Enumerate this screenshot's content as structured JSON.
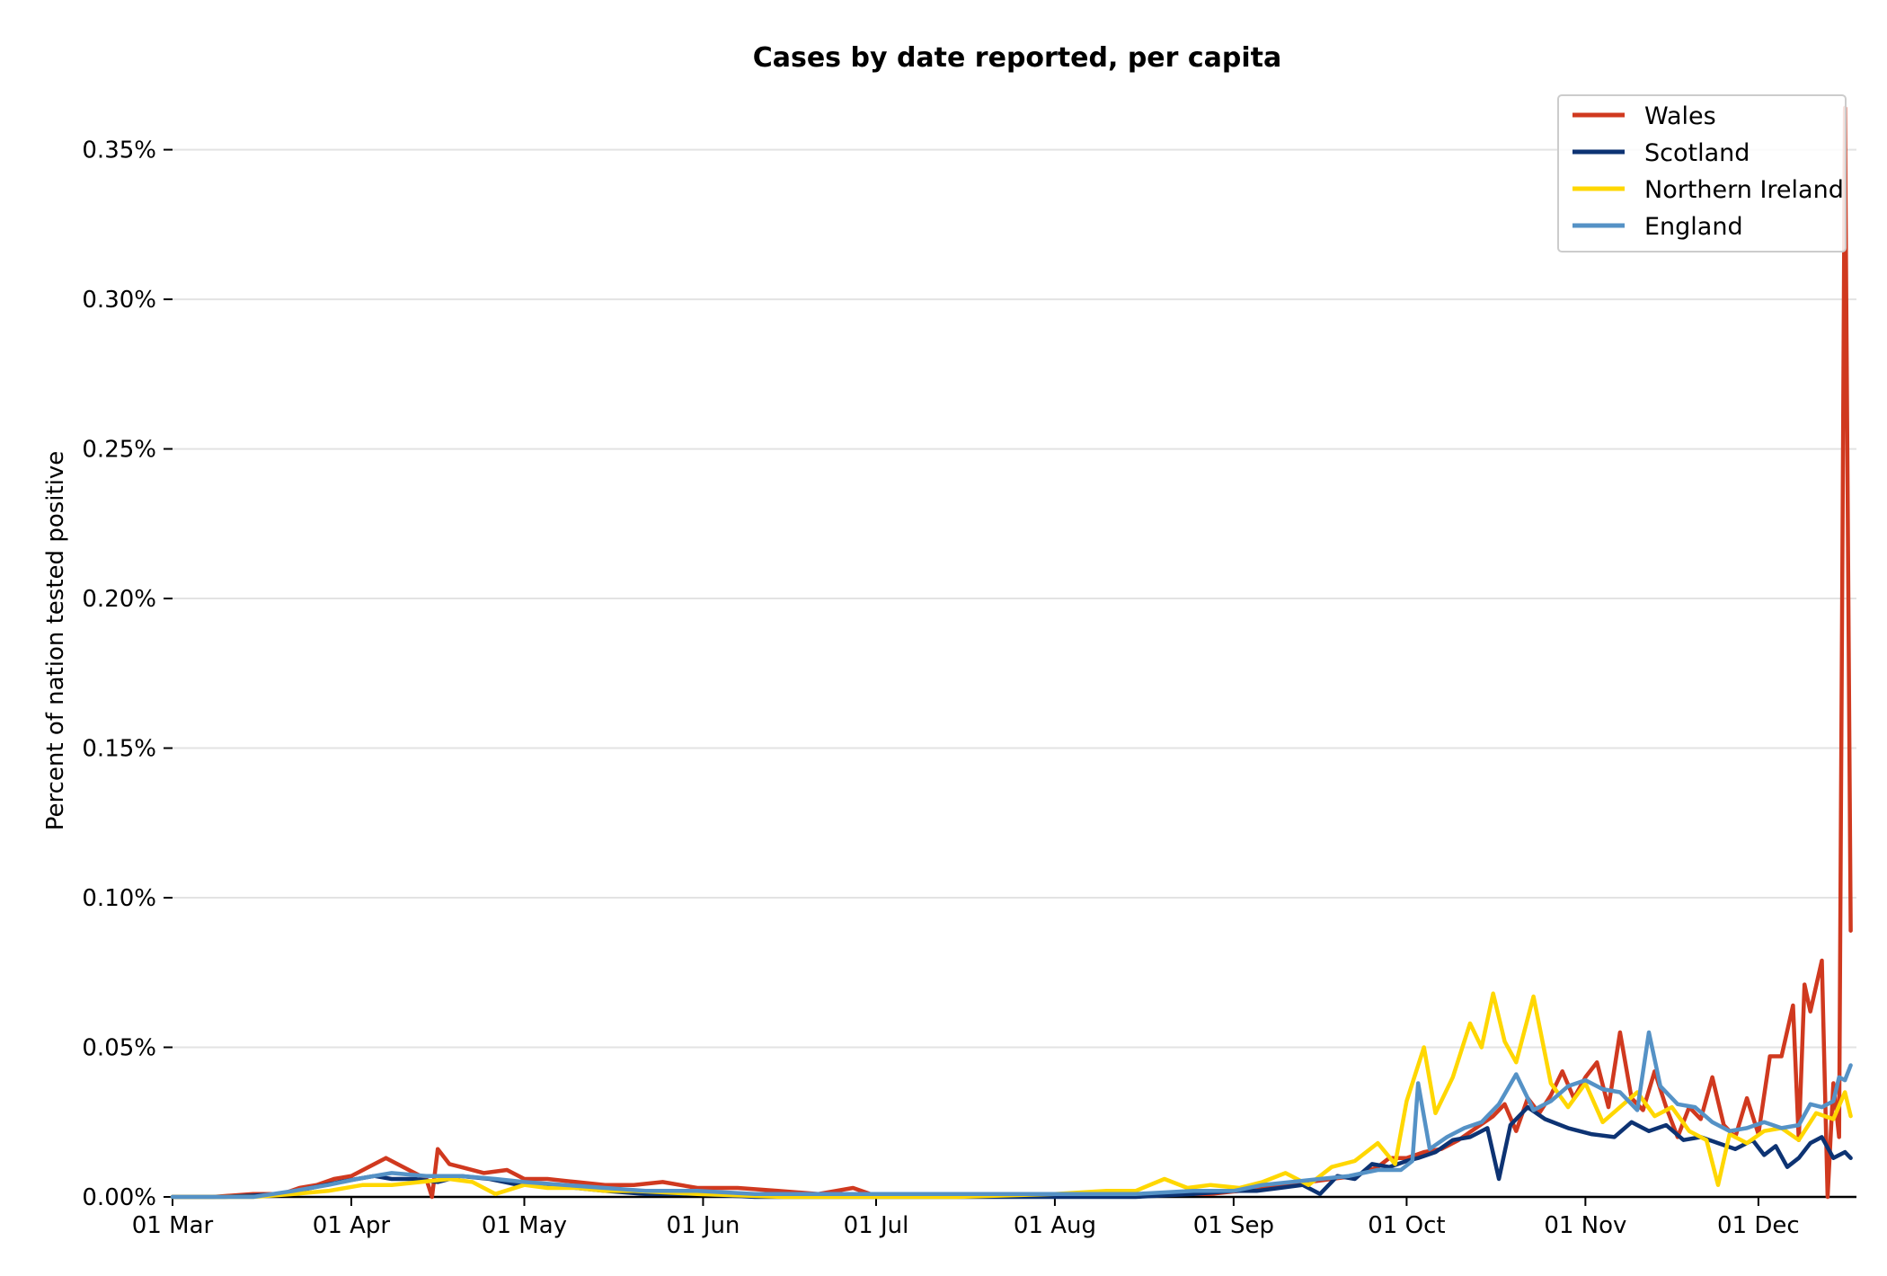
{
  "chart_data": {
    "type": "line",
    "title": "Cases by date reported, per capita",
    "xlabel": "",
    "ylabel": "Percent of nation tested positive",
    "x_tick_labels": [
      "01 Mar",
      "01 Apr",
      "01 May",
      "01 Jun",
      "01 Jul",
      "01 Aug",
      "01 Sep",
      "01 Oct",
      "01 Nov",
      "01 Dec"
    ],
    "y_tick_labels": [
      "0.00%",
      "0.05%",
      "0.10%",
      "0.15%",
      "0.20%",
      "0.25%",
      "0.30%",
      "0.35%"
    ],
    "y_ticks": [
      0,
      0.05,
      0.1,
      0.15,
      0.2,
      0.25,
      0.3,
      0.35
    ],
    "ylim": [
      0,
      0.37
    ],
    "xlim": [
      "2020-03-01",
      "2020-12-18"
    ],
    "grid": "horizontal",
    "legend_position": "top-right",
    "series": [
      {
        "name": "Wales",
        "color": "#d0391f",
        "points": [
          [
            "2020-03-01",
            0.0
          ],
          [
            "2020-03-08",
            0.0
          ],
          [
            "2020-03-15",
            0.001
          ],
          [
            "2020-03-20",
            0.001
          ],
          [
            "2020-03-23",
            0.003
          ],
          [
            "2020-03-26",
            0.004
          ],
          [
            "2020-03-29",
            0.006
          ],
          [
            "2020-04-01",
            0.007
          ],
          [
            "2020-04-04",
            0.01
          ],
          [
            "2020-04-07",
            0.013
          ],
          [
            "2020-04-10",
            0.01
          ],
          [
            "2020-04-14",
            0.006
          ],
          [
            "2020-04-15",
            0.0
          ],
          [
            "2020-04-16",
            0.016
          ],
          [
            "2020-04-18",
            0.011
          ],
          [
            "2020-04-20",
            0.01
          ],
          [
            "2020-04-24",
            0.008
          ],
          [
            "2020-04-28",
            0.009
          ],
          [
            "2020-05-01",
            0.006
          ],
          [
            "2020-05-05",
            0.006
          ],
          [
            "2020-05-10",
            0.005
          ],
          [
            "2020-05-15",
            0.004
          ],
          [
            "2020-05-20",
            0.004
          ],
          [
            "2020-05-25",
            0.005
          ],
          [
            "2020-05-31",
            0.003
          ],
          [
            "2020-06-07",
            0.003
          ],
          [
            "2020-06-14",
            0.002
          ],
          [
            "2020-06-21",
            0.001
          ],
          [
            "2020-06-27",
            0.003
          ],
          [
            "2020-06-30",
            0.001
          ],
          [
            "2020-07-08",
            0.001
          ],
          [
            "2020-07-15",
            0.001
          ],
          [
            "2020-07-22",
            0.001
          ],
          [
            "2020-07-31",
            0.001
          ],
          [
            "2020-08-10",
            0.001
          ],
          [
            "2020-08-20",
            0.001
          ],
          [
            "2020-08-28",
            0.001
          ],
          [
            "2020-09-02",
            0.002
          ],
          [
            "2020-09-06",
            0.003
          ],
          [
            "2020-09-10",
            0.004
          ],
          [
            "2020-09-14",
            0.005
          ],
          [
            "2020-09-18",
            0.006
          ],
          [
            "2020-09-22",
            0.007
          ],
          [
            "2020-09-26",
            0.01
          ],
          [
            "2020-09-28",
            0.013
          ],
          [
            "2020-10-01",
            0.013
          ],
          [
            "2020-10-04",
            0.015
          ],
          [
            "2020-10-07",
            0.016
          ],
          [
            "2020-10-10",
            0.019
          ],
          [
            "2020-10-13",
            0.023
          ],
          [
            "2020-10-16",
            0.027
          ],
          [
            "2020-10-18",
            0.031
          ],
          [
            "2020-10-20",
            0.022
          ],
          [
            "2020-10-22",
            0.033
          ],
          [
            "2020-10-24",
            0.028
          ],
          [
            "2020-10-26",
            0.034
          ],
          [
            "2020-10-28",
            0.042
          ],
          [
            "2020-10-30",
            0.033
          ],
          [
            "2020-11-01",
            0.04
          ],
          [
            "2020-11-03",
            0.045
          ],
          [
            "2020-11-05",
            0.03
          ],
          [
            "2020-11-07",
            0.055
          ],
          [
            "2020-11-09",
            0.033
          ],
          [
            "2020-11-11",
            0.029
          ],
          [
            "2020-11-13",
            0.042
          ],
          [
            "2020-11-15",
            0.03
          ],
          [
            "2020-11-17",
            0.02
          ],
          [
            "2020-11-19",
            0.03
          ],
          [
            "2020-11-21",
            0.026
          ],
          [
            "2020-11-23",
            0.04
          ],
          [
            "2020-11-25",
            0.024
          ],
          [
            "2020-11-27",
            0.02
          ],
          [
            "2020-11-29",
            0.033
          ],
          [
            "2020-12-01",
            0.021
          ],
          [
            "2020-12-03",
            0.047
          ],
          [
            "2020-12-05",
            0.047
          ],
          [
            "2020-12-07",
            0.064
          ],
          [
            "2020-12-08",
            0.019
          ],
          [
            "2020-12-09",
            0.071
          ],
          [
            "2020-12-10",
            0.062
          ],
          [
            "2020-12-12",
            0.079
          ],
          [
            "2020-12-13",
            0.0
          ],
          [
            "2020-12-14",
            0.038
          ],
          [
            "2020-12-15",
            0.02
          ],
          [
            "2020-12-16",
            0.364
          ],
          [
            "2020-12-17",
            0.089
          ]
        ]
      },
      {
        "name": "Scotland",
        "color": "#0d3373",
        "points": [
          [
            "2020-03-01",
            0.0
          ],
          [
            "2020-03-10",
            0.0
          ],
          [
            "2020-03-20",
            0.001
          ],
          [
            "2020-03-25",
            0.003
          ],
          [
            "2020-03-30",
            0.005
          ],
          [
            "2020-04-02",
            0.006
          ],
          [
            "2020-04-05",
            0.007
          ],
          [
            "2020-04-08",
            0.006
          ],
          [
            "2020-04-12",
            0.006
          ],
          [
            "2020-04-16",
            0.005
          ],
          [
            "2020-04-20",
            0.007
          ],
          [
            "2020-04-25",
            0.006
          ],
          [
            "2020-04-30",
            0.004
          ],
          [
            "2020-05-05",
            0.004
          ],
          [
            "2020-05-10",
            0.003
          ],
          [
            "2020-05-15",
            0.002
          ],
          [
            "2020-05-22",
            0.001
          ],
          [
            "2020-05-31",
            0.001
          ],
          [
            "2020-06-10",
            0.0
          ],
          [
            "2020-06-20",
            0.0
          ],
          [
            "2020-07-01",
            0.0
          ],
          [
            "2020-07-20",
            0.0
          ],
          [
            "2020-08-01",
            0.0
          ],
          [
            "2020-08-15",
            0.0
          ],
          [
            "2020-08-25",
            0.001
          ],
          [
            "2020-09-01",
            0.002
          ],
          [
            "2020-09-05",
            0.002
          ],
          [
            "2020-09-09",
            0.003
          ],
          [
            "2020-09-13",
            0.004
          ],
          [
            "2020-09-16",
            0.001
          ],
          [
            "2020-09-19",
            0.007
          ],
          [
            "2020-09-22",
            0.006
          ],
          [
            "2020-09-25",
            0.011
          ],
          [
            "2020-09-28",
            0.01
          ],
          [
            "2020-10-01",
            0.012
          ],
          [
            "2020-10-03",
            0.013
          ],
          [
            "2020-10-06",
            0.015
          ],
          [
            "2020-10-09",
            0.019
          ],
          [
            "2020-10-12",
            0.02
          ],
          [
            "2020-10-15",
            0.023
          ],
          [
            "2020-10-17",
            0.006
          ],
          [
            "2020-10-19",
            0.024
          ],
          [
            "2020-10-22",
            0.03
          ],
          [
            "2020-10-25",
            0.026
          ],
          [
            "2020-10-29",
            0.023
          ],
          [
            "2020-11-02",
            0.021
          ],
          [
            "2020-11-06",
            0.02
          ],
          [
            "2020-11-09",
            0.025
          ],
          [
            "2020-11-12",
            0.022
          ],
          [
            "2020-11-15",
            0.024
          ],
          [
            "2020-11-18",
            0.019
          ],
          [
            "2020-11-21",
            0.02
          ],
          [
            "2020-11-24",
            0.018
          ],
          [
            "2020-11-27",
            0.016
          ],
          [
            "2020-11-30",
            0.019
          ],
          [
            "2020-12-02",
            0.014
          ],
          [
            "2020-12-04",
            0.017
          ],
          [
            "2020-12-06",
            0.01
          ],
          [
            "2020-12-08",
            0.013
          ],
          [
            "2020-12-10",
            0.018
          ],
          [
            "2020-12-12",
            0.02
          ],
          [
            "2020-12-14",
            0.013
          ],
          [
            "2020-12-16",
            0.015
          ],
          [
            "2020-12-17",
            0.013
          ]
        ]
      },
      {
        "name": "Northern Ireland",
        "color": "#ffd700",
        "points": [
          [
            "2020-03-01",
            0.0
          ],
          [
            "2020-03-15",
            0.0
          ],
          [
            "2020-03-22",
            0.001
          ],
          [
            "2020-03-28",
            0.002
          ],
          [
            "2020-04-03",
            0.004
          ],
          [
            "2020-04-08",
            0.004
          ],
          [
            "2020-04-13",
            0.005
          ],
          [
            "2020-04-18",
            0.006
          ],
          [
            "2020-04-22",
            0.005
          ],
          [
            "2020-04-26",
            0.001
          ],
          [
            "2020-05-01",
            0.004
          ],
          [
            "2020-05-05",
            0.003
          ],
          [
            "2020-05-10",
            0.003
          ],
          [
            "2020-05-15",
            0.002
          ],
          [
            "2020-05-20",
            0.002
          ],
          [
            "2020-05-31",
            0.001
          ],
          [
            "2020-06-15",
            0.0
          ],
          [
            "2020-07-01",
            0.0
          ],
          [
            "2020-07-15",
            0.0
          ],
          [
            "2020-08-01",
            0.001
          ],
          [
            "2020-08-10",
            0.002
          ],
          [
            "2020-08-15",
            0.002
          ],
          [
            "2020-08-20",
            0.006
          ],
          [
            "2020-08-24",
            0.003
          ],
          [
            "2020-08-28",
            0.004
          ],
          [
            "2020-09-02",
            0.003
          ],
          [
            "2020-09-06",
            0.005
          ],
          [
            "2020-09-10",
            0.008
          ],
          [
            "2020-09-14",
            0.004
          ],
          [
            "2020-09-18",
            0.01
          ],
          [
            "2020-09-22",
            0.012
          ],
          [
            "2020-09-26",
            0.018
          ],
          [
            "2020-09-29",
            0.011
          ],
          [
            "2020-10-01",
            0.032
          ],
          [
            "2020-10-04",
            0.05
          ],
          [
            "2020-10-06",
            0.028
          ],
          [
            "2020-10-09",
            0.04
          ],
          [
            "2020-10-12",
            0.058
          ],
          [
            "2020-10-14",
            0.05
          ],
          [
            "2020-10-16",
            0.068
          ],
          [
            "2020-10-18",
            0.052
          ],
          [
            "2020-10-20",
            0.045
          ],
          [
            "2020-10-23",
            0.067
          ],
          [
            "2020-10-26",
            0.038
          ],
          [
            "2020-10-29",
            0.03
          ],
          [
            "2020-11-01",
            0.038
          ],
          [
            "2020-11-04",
            0.025
          ],
          [
            "2020-11-07",
            0.03
          ],
          [
            "2020-11-10",
            0.035
          ],
          [
            "2020-11-13",
            0.027
          ],
          [
            "2020-11-16",
            0.03
          ],
          [
            "2020-11-19",
            0.022
          ],
          [
            "2020-11-22",
            0.019
          ],
          [
            "2020-11-24",
            0.004
          ],
          [
            "2020-11-26",
            0.021
          ],
          [
            "2020-11-29",
            0.018
          ],
          [
            "2020-12-02",
            0.022
          ],
          [
            "2020-12-05",
            0.023
          ],
          [
            "2020-12-08",
            0.019
          ],
          [
            "2020-12-11",
            0.028
          ],
          [
            "2020-12-14",
            0.026
          ],
          [
            "2020-12-16",
            0.035
          ],
          [
            "2020-12-17",
            0.027
          ]
        ]
      },
      {
        "name": "England",
        "color": "#5592c6",
        "points": [
          [
            "2020-03-01",
            0.0
          ],
          [
            "2020-03-15",
            0.0
          ],
          [
            "2020-03-22",
            0.002
          ],
          [
            "2020-03-28",
            0.004
          ],
          [
            "2020-04-02",
            0.006
          ],
          [
            "2020-04-08",
            0.008
          ],
          [
            "2020-04-14",
            0.007
          ],
          [
            "2020-04-20",
            0.007
          ],
          [
            "2020-04-26",
            0.006
          ],
          [
            "2020-05-01",
            0.005
          ],
          [
            "2020-05-08",
            0.004
          ],
          [
            "2020-05-15",
            0.003
          ],
          [
            "2020-05-22",
            0.002
          ],
          [
            "2020-05-31",
            0.002
          ],
          [
            "2020-06-10",
            0.001
          ],
          [
            "2020-06-20",
            0.001
          ],
          [
            "2020-07-01",
            0.001
          ],
          [
            "2020-07-15",
            0.001
          ],
          [
            "2020-08-01",
            0.001
          ],
          [
            "2020-08-15",
            0.001
          ],
          [
            "2020-08-25",
            0.002
          ],
          [
            "2020-09-01",
            0.002
          ],
          [
            "2020-09-06",
            0.004
          ],
          [
            "2020-09-11",
            0.005
          ],
          [
            "2020-09-16",
            0.006
          ],
          [
            "2020-09-21",
            0.007
          ],
          [
            "2020-09-26",
            0.009
          ],
          [
            "2020-09-30",
            0.009
          ],
          [
            "2020-10-02",
            0.012
          ],
          [
            "2020-10-03",
            0.038
          ],
          [
            "2020-10-05",
            0.016
          ],
          [
            "2020-10-08",
            0.02
          ],
          [
            "2020-10-11",
            0.023
          ],
          [
            "2020-10-14",
            0.025
          ],
          [
            "2020-10-17",
            0.031
          ],
          [
            "2020-10-20",
            0.041
          ],
          [
            "2020-10-23",
            0.029
          ],
          [
            "2020-10-26",
            0.032
          ],
          [
            "2020-10-29",
            0.037
          ],
          [
            "2020-11-01",
            0.039
          ],
          [
            "2020-11-04",
            0.036
          ],
          [
            "2020-11-07",
            0.035
          ],
          [
            "2020-11-10",
            0.029
          ],
          [
            "2020-11-12",
            0.055
          ],
          [
            "2020-11-14",
            0.037
          ],
          [
            "2020-11-17",
            0.031
          ],
          [
            "2020-11-20",
            0.03
          ],
          [
            "2020-11-23",
            0.025
          ],
          [
            "2020-11-26",
            0.022
          ],
          [
            "2020-11-29",
            0.023
          ],
          [
            "2020-12-02",
            0.025
          ],
          [
            "2020-12-05",
            0.023
          ],
          [
            "2020-12-08",
            0.024
          ],
          [
            "2020-12-10",
            0.031
          ],
          [
            "2020-12-12",
            0.03
          ],
          [
            "2020-12-14",
            0.032
          ],
          [
            "2020-12-15",
            0.04
          ],
          [
            "2020-12-16",
            0.039
          ],
          [
            "2020-12-17",
            0.044
          ]
        ]
      }
    ]
  }
}
